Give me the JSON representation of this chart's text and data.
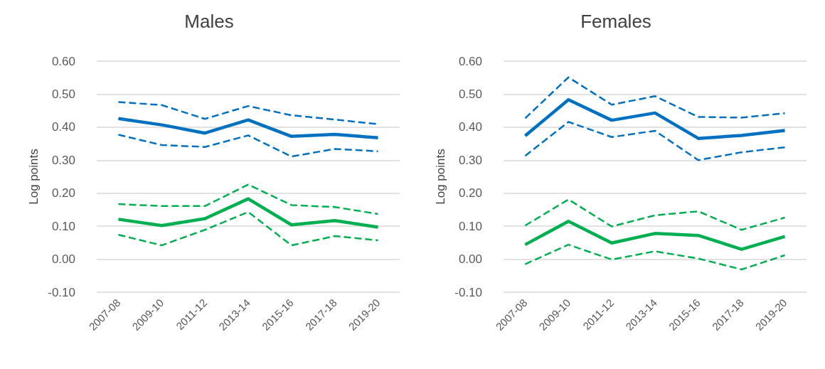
{
  "chart_data": [
    {
      "type": "line",
      "title": "Males",
      "ylabel": "Log points",
      "categories": [
        "2007-08",
        "2009-10",
        "2011-12",
        "2013-14",
        "2015-16",
        "2017-18",
        "2019-20"
      ],
      "ylim": [
        -0.1,
        0.6
      ],
      "yticks": [
        {
          "value": -0.1,
          "label": "-0.10"
        },
        {
          "value": 0,
          "label": "0.00"
        },
        {
          "value": 0.1,
          "label": "0.10"
        },
        {
          "value": 0.2,
          "label": "0.20"
        },
        {
          "value": 0.3,
          "label": "0.30"
        },
        {
          "value": 0.4,
          "label": "0.40"
        },
        {
          "value": 0.5,
          "label": "0.50"
        },
        {
          "value": 0.6,
          "label": "0.60"
        }
      ],
      "grid": "y",
      "marker": "none",
      "series": [
        {
          "color": "#0070c0",
          "line_style": "dashed",
          "values": [
            0.476,
            0.467,
            0.425,
            0.464,
            0.436,
            0.423,
            0.409
          ]
        },
        {
          "color": "#0070c0",
          "line_style": "solid",
          "values": [
            0.426,
            0.407,
            0.382,
            0.422,
            0.372,
            0.378,
            0.368
          ]
        },
        {
          "color": "#0070c0",
          "line_style": "dashed",
          "values": [
            0.377,
            0.346,
            0.34,
            0.375,
            0.311,
            0.334,
            0.327
          ]
        },
        {
          "color": "#00b050",
          "line_style": "dashed",
          "values": [
            0.167,
            0.161,
            0.161,
            0.226,
            0.164,
            0.158,
            0.137
          ]
        },
        {
          "color": "#00b050",
          "line_style": "solid",
          "values": [
            0.121,
            0.102,
            0.123,
            0.183,
            0.104,
            0.117,
            0.097
          ]
        },
        {
          "color": "#00b050",
          "line_style": "dashed",
          "values": [
            0.074,
            0.042,
            0.089,
            0.143,
            0.042,
            0.07,
            0.057
          ]
        }
      ]
    },
    {
      "type": "line",
      "title": "Females",
      "ylabel": "Log points",
      "categories": [
        "2007-08",
        "2009-10",
        "2011-12",
        "2013-14",
        "2015-16",
        "2017-18",
        "2019-20"
      ],
      "ylim": [
        -0.1,
        0.6
      ],
      "yticks": [
        {
          "value": -0.1,
          "label": "-0.10"
        },
        {
          "value": 0,
          "label": "0.00"
        },
        {
          "value": 0.1,
          "label": "0.10"
        },
        {
          "value": 0.2,
          "label": "0.20"
        },
        {
          "value": 0.3,
          "label": "0.30"
        },
        {
          "value": 0.4,
          "label": "0.40"
        },
        {
          "value": 0.5,
          "label": "0.50"
        },
        {
          "value": 0.6,
          "label": "0.60"
        }
      ],
      "grid": "y",
      "marker": "none",
      "series": [
        {
          "color": "#0070c0",
          "line_style": "dashed",
          "values": [
            0.427,
            0.551,
            0.468,
            0.494,
            0.431,
            0.429,
            0.442
          ]
        },
        {
          "color": "#0070c0",
          "line_style": "solid",
          "values": [
            0.374,
            0.483,
            0.421,
            0.443,
            0.366,
            0.375,
            0.39
          ]
        },
        {
          "color": "#0070c0",
          "line_style": "dashed",
          "values": [
            0.313,
            0.416,
            0.37,
            0.389,
            0.3,
            0.324,
            0.339
          ]
        },
        {
          "color": "#00b050",
          "line_style": "dashed",
          "values": [
            0.102,
            0.181,
            0.099,
            0.133,
            0.145,
            0.089,
            0.126
          ]
        },
        {
          "color": "#00b050",
          "line_style": "solid",
          "values": [
            0.044,
            0.115,
            0.049,
            0.078,
            0.072,
            0.03,
            0.069
          ]
        },
        {
          "color": "#00b050",
          "line_style": "dashed",
          "values": [
            -0.015,
            0.044,
            -0.001,
            0.024,
            0.002,
            -0.031,
            0.012
          ]
        }
      ]
    }
  ]
}
